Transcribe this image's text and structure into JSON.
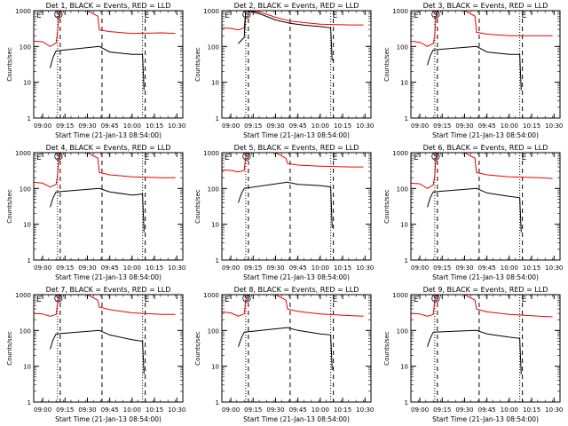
{
  "colors": {
    "events": "#000000",
    "lld": "#ee0000"
  },
  "common": {
    "ylabel": "Counts/sec",
    "xlabel": "Start Time (21-Jan-13 08:54:00)",
    "x_ticks": [
      "09:00",
      "09:15",
      "09:30",
      "09:45",
      "10:00",
      "10:15",
      "10:30"
    ],
    "y_ticks": [
      "1",
      "10",
      "100",
      "1000"
    ],
    "marker_labels": {
      "eclipse_entry": "E",
      "saa": "S",
      "eclipse_exit": "E"
    }
  },
  "chart_data": [
    {
      "type": "line",
      "title": "Det 1, BLACK = Events, RED = LLD",
      "y_scale": "log",
      "ylim": [
        1,
        1000
      ],
      "xlim": [
        "08:54",
        "10:34"
      ],
      "markers": {
        "dotted": [
          "09:10",
          "10:07"
        ],
        "dashed": [
          "09:10",
          "09:38",
          "10:07"
        ]
      },
      "series": [
        {
          "key": "lld",
          "x": [
            "08:54",
            "09:00",
            "09:05",
            "09:09",
            "09:10",
            "09:11",
            "09:30",
            "09:37",
            "09:38",
            "09:45",
            "10:00",
            "10:20",
            "10:29"
          ],
          "values": [
            140,
            135,
            100,
            125,
            260,
            1000,
            1000,
            700,
            290,
            260,
            230,
            240,
            230
          ]
        },
        {
          "key": "events",
          "x": [
            "09:05",
            "09:07",
            "09:09",
            "09:38",
            "09:45",
            "10:00",
            "10:07",
            "10:08"
          ],
          "values": [
            25,
            50,
            75,
            100,
            70,
            60,
            60,
            6
          ]
        }
      ]
    },
    {
      "type": "line",
      "title": "Det 2, BLACK = Events, RED = LLD",
      "y_scale": "log",
      "ylim": [
        1,
        1000
      ],
      "xlim": [
        "08:54",
        "10:34"
      ],
      "markers": {
        "dotted": [
          "09:10",
          "10:07"
        ],
        "dashed": [
          "09:10",
          "09:38",
          "10:07"
        ]
      },
      "series": [
        {
          "key": "lld",
          "x": [
            "08:54",
            "09:00",
            "09:05",
            "09:09",
            "09:10",
            "09:11",
            "09:20",
            "09:30",
            "09:40",
            "09:50",
            "10:00",
            "10:07",
            "10:20",
            "10:29"
          ],
          "values": [
            330,
            320,
            290,
            330,
            1000,
            1000,
            900,
            650,
            510,
            460,
            420,
            410,
            400,
            400
          ]
        },
        {
          "key": "events",
          "x": [
            "09:05",
            "09:09",
            "09:10",
            "09:11",
            "09:20",
            "09:30",
            "09:40",
            "09:50",
            "10:00",
            "10:07",
            "10:08"
          ],
          "values": [
            120,
            180,
            1000,
            1000,
            800,
            550,
            440,
            390,
            360,
            330,
            40
          ]
        }
      ]
    },
    {
      "type": "line",
      "title": "Det 3, BLACK = Events, RED = LLD",
      "y_scale": "log",
      "ylim": [
        1,
        1000
      ],
      "xlim": [
        "08:54",
        "10:34"
      ],
      "markers": {
        "dotted": [
          "09:10",
          "10:07"
        ],
        "dashed": [
          "09:10",
          "09:38",
          "10:07"
        ]
      },
      "series": [
        {
          "key": "lld",
          "x": [
            "08:54",
            "09:00",
            "09:05",
            "09:09",
            "09:10",
            "09:11",
            "09:30",
            "09:37",
            "09:38",
            "09:45",
            "10:00",
            "10:20",
            "10:29"
          ],
          "values": [
            140,
            130,
            100,
            120,
            200,
            1000,
            1000,
            700,
            250,
            220,
            200,
            200,
            200
          ]
        },
        {
          "key": "events",
          "x": [
            "09:05",
            "09:07",
            "09:09",
            "09:38",
            "09:45",
            "10:00",
            "10:07",
            "10:08"
          ],
          "values": [
            30,
            55,
            80,
            100,
            70,
            60,
            60,
            6
          ]
        }
      ]
    },
    {
      "type": "line",
      "title": "Det 4, BLACK = Events, RED = LLD",
      "y_scale": "log",
      "ylim": [
        1,
        1000
      ],
      "xlim": [
        "08:54",
        "10:34"
      ],
      "markers": {
        "dotted": [
          "09:10",
          "10:07"
        ],
        "dashed": [
          "09:10",
          "09:38",
          "10:07"
        ]
      },
      "series": [
        {
          "key": "lld",
          "x": [
            "08:54",
            "09:00",
            "09:05",
            "09:09",
            "09:10",
            "09:11",
            "09:30",
            "09:37",
            "09:38",
            "09:45",
            "10:00",
            "10:20",
            "10:29"
          ],
          "values": [
            150,
            140,
            110,
            130,
            230,
            1000,
            1000,
            700,
            280,
            240,
            210,
            200,
            200
          ]
        },
        {
          "key": "events",
          "x": [
            "09:05",
            "09:07",
            "09:09",
            "09:38",
            "09:45",
            "10:00",
            "10:07",
            "10:08"
          ],
          "values": [
            30,
            55,
            80,
            100,
            80,
            65,
            70,
            6
          ]
        }
      ]
    },
    {
      "type": "line",
      "title": "Det 5, BLACK = Events, RED = LLD",
      "y_scale": "log",
      "ylim": [
        1,
        1000
      ],
      "xlim": [
        "08:54",
        "10:34"
      ],
      "markers": {
        "dotted": [
          "09:10",
          "10:07"
        ],
        "dashed": [
          "09:10",
          "09:38",
          "10:07"
        ]
      },
      "series": [
        {
          "key": "lld",
          "x": [
            "08:54",
            "09:00",
            "09:05",
            "09:09",
            "09:10",
            "09:11",
            "09:30",
            "09:37",
            "09:38",
            "09:45",
            "10:00",
            "10:20",
            "10:29"
          ],
          "values": [
            330,
            320,
            290,
            320,
            800,
            1000,
            1000,
            700,
            500,
            450,
            420,
            400,
            400
          ]
        },
        {
          "key": "events",
          "x": [
            "09:05",
            "09:07",
            "09:09",
            "09:38",
            "09:45",
            "10:00",
            "10:07",
            "10:08"
          ],
          "values": [
            40,
            70,
            100,
            150,
            130,
            120,
            110,
            8
          ]
        }
      ]
    },
    {
      "type": "line",
      "title": "Det 6, BLACK = Events, RED = LLD",
      "y_scale": "log",
      "ylim": [
        1,
        1000
      ],
      "xlim": [
        "08:54",
        "10:34"
      ],
      "markers": {
        "dotted": [
          "09:10",
          "10:07"
        ],
        "dashed": [
          "09:10",
          "09:38",
          "10:07"
        ]
      },
      "series": [
        {
          "key": "lld",
          "x": [
            "08:54",
            "09:00",
            "09:05",
            "09:09",
            "09:10",
            "09:11",
            "09:30",
            "09:37",
            "09:38",
            "09:45",
            "10:00",
            "10:20",
            "10:29"
          ],
          "values": [
            140,
            135,
            100,
            125,
            230,
            1000,
            1000,
            700,
            280,
            240,
            210,
            200,
            190
          ]
        },
        {
          "key": "events",
          "x": [
            "09:05",
            "09:07",
            "09:09",
            "09:38",
            "09:45",
            "10:00",
            "10:07",
            "10:08"
          ],
          "values": [
            30,
            55,
            80,
            100,
            75,
            60,
            55,
            6
          ]
        }
      ]
    },
    {
      "type": "line",
      "title": "Det 7, BLACK = Events, RED = LLD",
      "y_scale": "log",
      "ylim": [
        1,
        1000
      ],
      "xlim": [
        "08:54",
        "10:34"
      ],
      "markers": {
        "dotted": [
          "09:10",
          "10:07"
        ],
        "dashed": [
          "09:10",
          "09:38",
          "10:07"
        ]
      },
      "series": [
        {
          "key": "lld",
          "x": [
            "08:54",
            "09:00",
            "09:05",
            "09:09",
            "09:10",
            "09:11",
            "09:30",
            "09:37",
            "09:38",
            "09:45",
            "10:00",
            "10:20",
            "10:29"
          ],
          "values": [
            300,
            290,
            250,
            280,
            600,
            1000,
            1000,
            700,
            450,
            380,
            310,
            280,
            280
          ]
        },
        {
          "key": "events",
          "x": [
            "09:05",
            "09:07",
            "09:09",
            "09:38",
            "09:45",
            "10:00",
            "10:07",
            "10:08"
          ],
          "values": [
            30,
            55,
            80,
            100,
            75,
            55,
            50,
            6
          ]
        }
      ]
    },
    {
      "type": "line",
      "title": "Det 8, BLACK = Events, RED = LLD",
      "y_scale": "log",
      "ylim": [
        1,
        1000
      ],
      "xlim": [
        "08:54",
        "10:34"
      ],
      "markers": {
        "dotted": [
          "09:10",
          "10:07"
        ],
        "dashed": [
          "09:10",
          "09:38",
          "10:07"
        ]
      },
      "series": [
        {
          "key": "lld",
          "x": [
            "08:54",
            "09:00",
            "09:05",
            "09:09",
            "09:10",
            "09:11",
            "09:30",
            "09:37",
            "09:38",
            "09:45",
            "10:00",
            "10:20",
            "10:29"
          ],
          "values": [
            330,
            310,
            250,
            290,
            700,
            1000,
            1000,
            700,
            400,
            340,
            290,
            260,
            250
          ]
        },
        {
          "key": "events",
          "x": [
            "09:05",
            "09:07",
            "09:09",
            "09:38",
            "09:45",
            "10:00",
            "10:07",
            "10:08"
          ],
          "values": [
            35,
            60,
            90,
            120,
            100,
            80,
            75,
            8
          ]
        }
      ]
    },
    {
      "type": "line",
      "title": "Det 9, BLACK = Events, RED = LLD",
      "y_scale": "log",
      "ylim": [
        1,
        1000
      ],
      "xlim": [
        "08:54",
        "10:34"
      ],
      "markers": {
        "dotted": [
          "09:10",
          "10:07"
        ],
        "dashed": [
          "09:10",
          "09:38",
          "10:07"
        ]
      },
      "series": [
        {
          "key": "lld",
          "x": [
            "08:54",
            "09:00",
            "09:05",
            "09:09",
            "09:10",
            "09:11",
            "09:30",
            "09:37",
            "09:38",
            "09:45",
            "10:00",
            "10:20",
            "10:29"
          ],
          "values": [
            300,
            290,
            250,
            280,
            700,
            1000,
            1000,
            700,
            400,
            330,
            280,
            250,
            240
          ]
        },
        {
          "key": "events",
          "x": [
            "09:05",
            "09:07",
            "09:09",
            "09:38",
            "09:45",
            "10:00",
            "10:07",
            "10:08"
          ],
          "values": [
            35,
            60,
            90,
            100,
            80,
            65,
            60,
            6
          ]
        }
      ]
    }
  ]
}
